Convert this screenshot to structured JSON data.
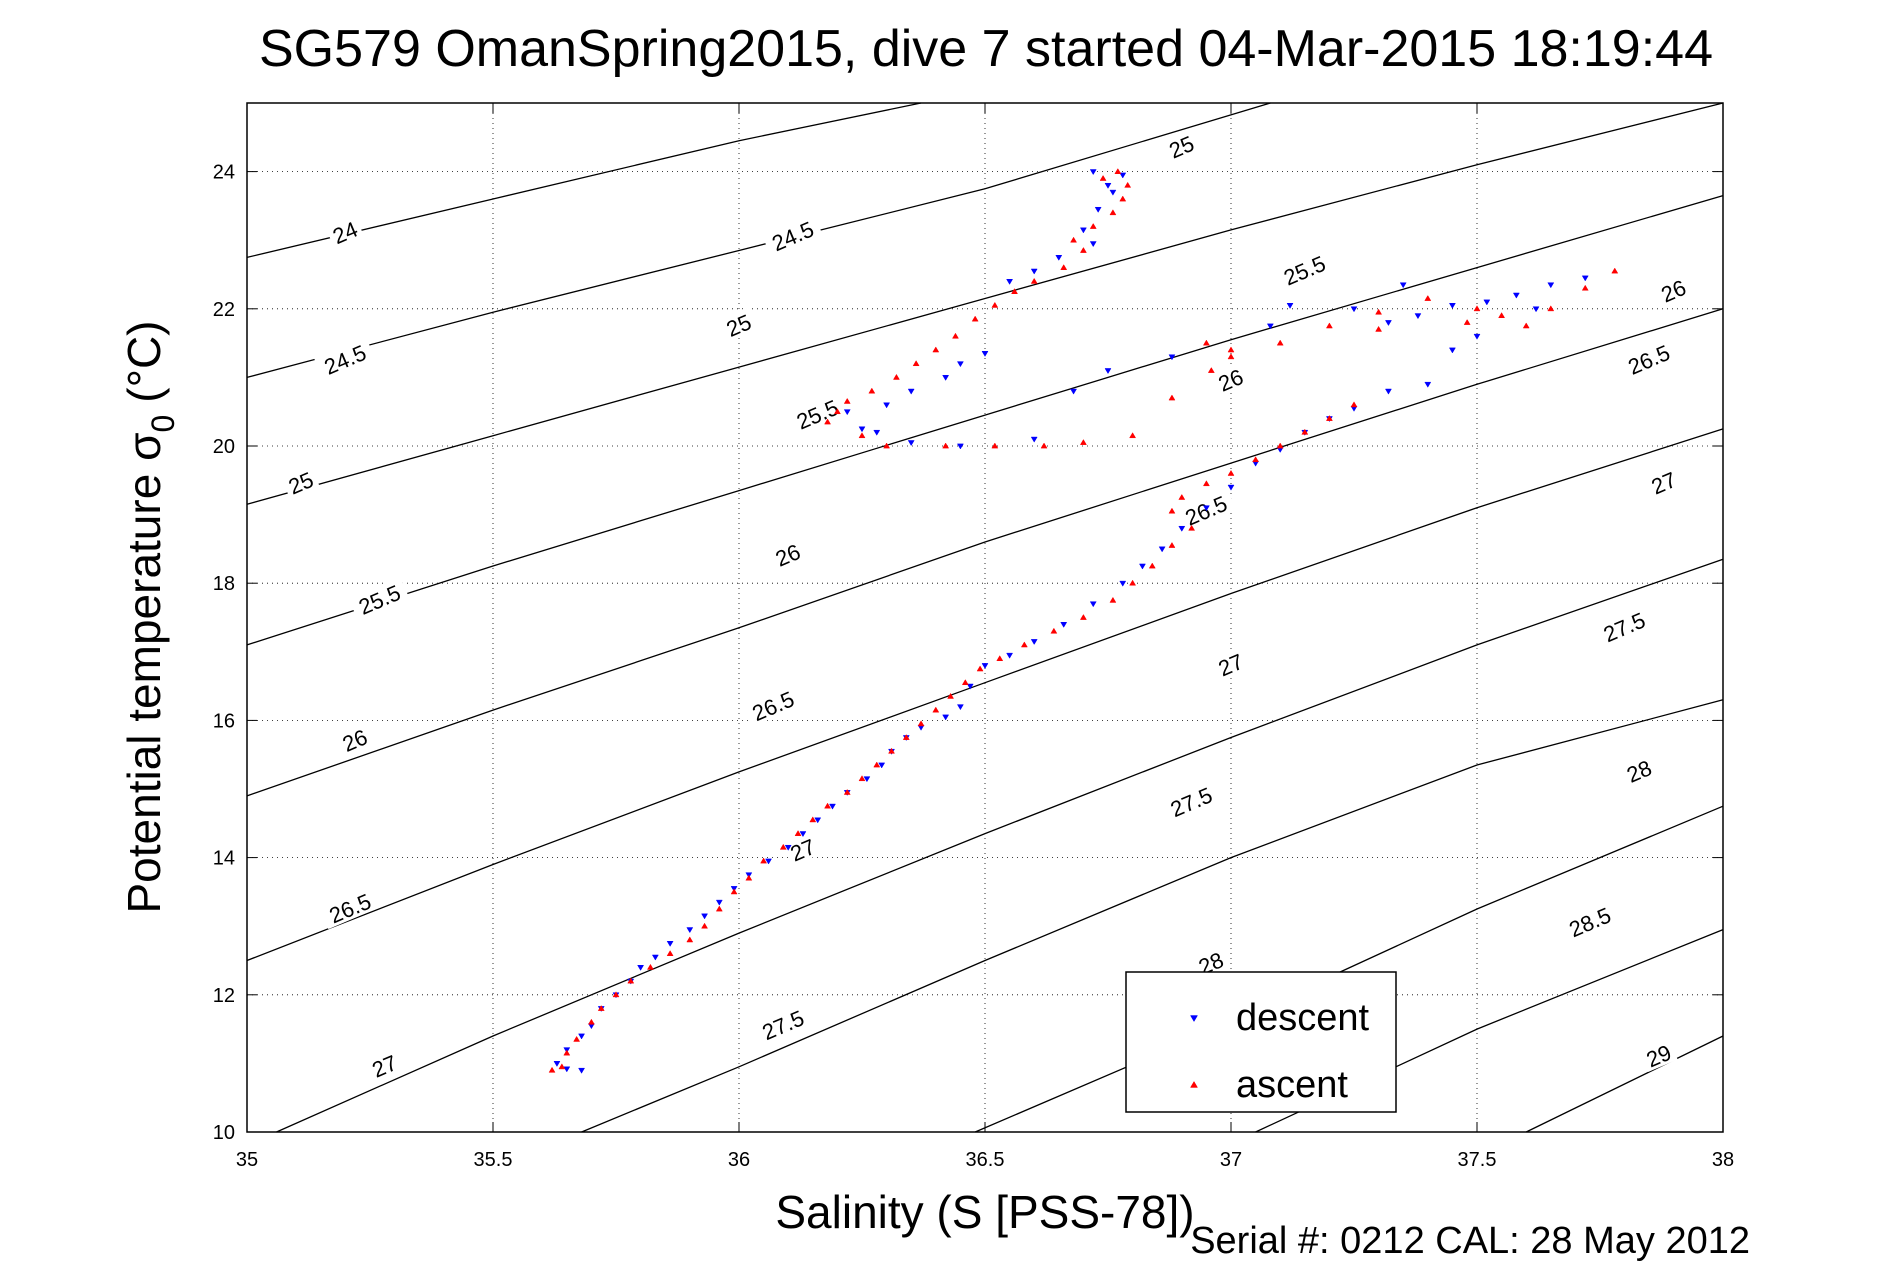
{
  "chart_data": {
    "type": "scatter",
    "title": "SG579 OmanSpring2015, dive 7 started 04-Mar-2015 18:19:44",
    "xlabel": "Salinity (S [PSS-78])",
    "ylabel_main": "Potential temperature σ",
    "ylabel_sub": "0",
    "ylabel_unit": "(°C)",
    "xlim": [
      35,
      38
    ],
    "ylim": [
      10,
      25
    ],
    "x_ticks": [
      35,
      35.5,
      36,
      36.5,
      37,
      37.5,
      38
    ],
    "x_tick_labels": [
      "35",
      "35.5",
      "36",
      "36.5",
      "37",
      "37.5",
      "38"
    ],
    "y_ticks": [
      10,
      12,
      14,
      16,
      18,
      20,
      22,
      24
    ],
    "y_tick_labels": [
      "10",
      "12",
      "14",
      "16",
      "18",
      "20",
      "22",
      "24"
    ],
    "grid": true,
    "legend_position": "bottom-right",
    "contours": [
      {
        "sigma": 24,
        "points": [
          [
            35.0,
            22.75
          ],
          [
            35.5,
            23.6
          ],
          [
            36.0,
            24.45
          ],
          [
            36.37,
            25.0
          ]
        ]
      },
      {
        "sigma": 24.5,
        "points": [
          [
            35.0,
            21.0
          ],
          [
            35.5,
            21.95
          ],
          [
            36.0,
            22.85
          ],
          [
            36.5,
            23.75
          ],
          [
            37.08,
            25.0
          ]
        ]
      },
      {
        "sigma": 25,
        "points": [
          [
            35.0,
            19.15
          ],
          [
            35.5,
            20.15
          ],
          [
            36.0,
            21.15
          ],
          [
            36.5,
            22.15
          ],
          [
            37.0,
            23.15
          ],
          [
            37.5,
            24.1
          ],
          [
            38.0,
            25.0
          ]
        ]
      },
      {
        "sigma": 25.5,
        "points": [
          [
            35.0,
            17.1
          ],
          [
            35.5,
            18.25
          ],
          [
            36.0,
            19.35
          ],
          [
            36.5,
            20.45
          ],
          [
            37.0,
            21.55
          ],
          [
            37.5,
            22.6
          ],
          [
            38.0,
            23.65
          ]
        ]
      },
      {
        "sigma": 26,
        "points": [
          [
            35.0,
            14.9
          ],
          [
            35.5,
            16.15
          ],
          [
            36.0,
            17.35
          ],
          [
            36.5,
            18.6
          ],
          [
            37.0,
            19.75
          ],
          [
            37.5,
            20.9
          ],
          [
            38.0,
            22.0
          ]
        ]
      },
      {
        "sigma": 26.5,
        "points": [
          [
            35.0,
            12.5
          ],
          [
            35.5,
            13.9
          ],
          [
            36.0,
            15.25
          ],
          [
            36.5,
            16.55
          ],
          [
            37.0,
            17.85
          ],
          [
            37.5,
            19.1
          ],
          [
            38.0,
            20.25
          ]
        ]
      },
      {
        "sigma": 27,
        "points": [
          [
            35.06,
            10.0
          ],
          [
            35.5,
            11.4
          ],
          [
            36.0,
            12.9
          ],
          [
            36.5,
            14.35
          ],
          [
            37.0,
            15.75
          ],
          [
            37.5,
            17.1
          ],
          [
            38.0,
            18.35
          ]
        ]
      },
      {
        "sigma": 27.5,
        "points": [
          [
            35.68,
            10.0
          ],
          [
            36.0,
            10.95
          ],
          [
            36.5,
            12.5
          ],
          [
            37.0,
            14.0
          ],
          [
            37.5,
            15.35
          ],
          [
            38.0,
            16.3
          ]
        ]
      },
      {
        "sigma": 28,
        "points": [
          [
            36.48,
            10.0
          ],
          [
            37.0,
            11.6
          ],
          [
            37.5,
            13.25
          ],
          [
            38.0,
            14.75
          ]
        ]
      },
      {
        "sigma": 28.5,
        "points": [
          [
            37.05,
            10.0
          ],
          [
            37.5,
            11.5
          ],
          [
            38.0,
            12.95
          ]
        ]
      },
      {
        "sigma": 29,
        "points": [
          [
            37.6,
            10.0
          ],
          [
            38.0,
            11.4
          ]
        ]
      }
    ],
    "contour_labels": [
      {
        "text": "24",
        "x": 35.2,
        "y": 23.1,
        "angle": -23
      },
      {
        "text": "24.5",
        "x": 36.11,
        "y": 23.05,
        "angle": -23
      },
      {
        "text": "25",
        "x": 36.9,
        "y": 24.35,
        "angle": -23
      },
      {
        "text": "24.5",
        "x": 35.2,
        "y": 21.25,
        "angle": -23
      },
      {
        "text": "25",
        "x": 36.0,
        "y": 21.75,
        "angle": -23
      },
      {
        "text": "25.5",
        "x": 37.15,
        "y": 22.55,
        "angle": -23
      },
      {
        "text": "26",
        "x": 37.9,
        "y": 22.25,
        "angle": -23
      },
      {
        "text": "25",
        "x": 35.11,
        "y": 19.45,
        "angle": -23
      },
      {
        "text": "25.5",
        "x": 36.16,
        "y": 20.45,
        "angle": -23
      },
      {
        "text": "26",
        "x": 37.0,
        "y": 20.95,
        "angle": -23
      },
      {
        "text": "26.5",
        "x": 37.85,
        "y": 21.25,
        "angle": -23
      },
      {
        "text": "25.5",
        "x": 35.27,
        "y": 17.75,
        "angle": -23
      },
      {
        "text": "26",
        "x": 36.1,
        "y": 18.4,
        "angle": -23
      },
      {
        "text": "26.5",
        "x": 36.95,
        "y": 19.05,
        "angle": -23
      },
      {
        "text": "27",
        "x": 37.88,
        "y": 19.45,
        "angle": -23
      },
      {
        "text": "26",
        "x": 35.22,
        "y": 15.7,
        "angle": -23
      },
      {
        "text": "26.5",
        "x": 36.07,
        "y": 16.2,
        "angle": -23
      },
      {
        "text": "27",
        "x": 37.0,
        "y": 16.8,
        "angle": -23
      },
      {
        "text": "27.5",
        "x": 37.8,
        "y": 17.35,
        "angle": -23
      },
      {
        "text": "26.5",
        "x": 35.21,
        "y": 13.25,
        "angle": -23
      },
      {
        "text": "27",
        "x": 36.13,
        "y": 14.1,
        "angle": -23
      },
      {
        "text": "27.5",
        "x": 36.92,
        "y": 14.8,
        "angle": -23
      },
      {
        "text": "28",
        "x": 37.83,
        "y": 15.25,
        "angle": -23
      },
      {
        "text": "27",
        "x": 35.28,
        "y": 10.95,
        "angle": -23
      },
      {
        "text": "27.5",
        "x": 36.09,
        "y": 11.55,
        "angle": -23
      },
      {
        "text": "28",
        "x": 36.96,
        "y": 12.45,
        "angle": -23
      },
      {
        "text": "28.5",
        "x": 37.73,
        "y": 13.05,
        "angle": -23
      },
      {
        "text": "29",
        "x": 37.87,
        "y": 11.1,
        "angle": -23
      }
    ],
    "series": [
      {
        "name": "descent",
        "color": "#0000ff",
        "marker": "triangle-down",
        "points": [
          [
            35.68,
            10.9
          ],
          [
            35.65,
            10.92
          ],
          [
            35.63,
            11.0
          ],
          [
            35.65,
            11.2
          ],
          [
            35.68,
            11.4
          ],
          [
            35.7,
            11.55
          ],
          [
            35.72,
            11.8
          ],
          [
            35.75,
            12.0
          ],
          [
            35.78,
            12.2
          ],
          [
            35.8,
            12.4
          ],
          [
            35.83,
            12.55
          ],
          [
            35.86,
            12.75
          ],
          [
            35.9,
            12.95
          ],
          [
            35.93,
            13.15
          ],
          [
            35.96,
            13.35
          ],
          [
            35.99,
            13.55
          ],
          [
            36.02,
            13.75
          ],
          [
            36.06,
            13.95
          ],
          [
            36.1,
            14.15
          ],
          [
            36.13,
            14.35
          ],
          [
            36.16,
            14.55
          ],
          [
            36.19,
            14.75
          ],
          [
            36.22,
            14.95
          ],
          [
            36.26,
            15.15
          ],
          [
            36.29,
            15.35
          ],
          [
            36.31,
            15.55
          ],
          [
            36.34,
            15.75
          ],
          [
            36.37,
            15.9
          ],
          [
            36.42,
            16.05
          ],
          [
            36.45,
            16.2
          ],
          [
            36.47,
            16.5
          ],
          [
            36.5,
            16.8
          ],
          [
            36.55,
            16.95
          ],
          [
            36.6,
            17.15
          ],
          [
            36.66,
            17.4
          ],
          [
            36.72,
            17.7
          ],
          [
            36.78,
            18.0
          ],
          [
            36.82,
            18.25
          ],
          [
            36.86,
            18.5
          ],
          [
            36.9,
            18.8
          ],
          [
            36.95,
            19.1
          ],
          [
            37.0,
            19.4
          ],
          [
            37.05,
            19.75
          ],
          [
            37.1,
            19.95
          ],
          [
            37.15,
            20.2
          ],
          [
            37.2,
            20.4
          ],
          [
            37.25,
            20.55
          ],
          [
            37.32,
            20.8
          ],
          [
            37.4,
            20.9
          ],
          [
            37.32,
            21.8
          ],
          [
            37.38,
            21.9
          ],
          [
            37.45,
            22.05
          ],
          [
            37.52,
            22.1
          ],
          [
            37.58,
            22.2
          ],
          [
            37.65,
            22.35
          ],
          [
            37.72,
            22.45
          ],
          [
            37.62,
            22.0
          ],
          [
            37.5,
            21.6
          ],
          [
            37.45,
            21.4
          ],
          [
            37.35,
            22.35
          ],
          [
            37.25,
            22.0
          ],
          [
            37.12,
            22.05
          ],
          [
            37.08,
            21.75
          ],
          [
            36.25,
            20.25
          ],
          [
            36.22,
            20.5
          ],
          [
            36.3,
            20.6
          ],
          [
            36.35,
            20.8
          ],
          [
            36.42,
            21.0
          ],
          [
            36.45,
            21.2
          ],
          [
            36.5,
            21.35
          ],
          [
            36.75,
            21.1
          ],
          [
            36.88,
            21.3
          ],
          [
            36.68,
            20.8
          ],
          [
            36.6,
            20.1
          ],
          [
            36.45,
            20.0
          ],
          [
            36.35,
            20.05
          ],
          [
            36.28,
            20.2
          ],
          [
            36.55,
            22.4
          ],
          [
            36.6,
            22.55
          ],
          [
            36.65,
            22.75
          ],
          [
            36.72,
            22.95
          ],
          [
            36.7,
            23.15
          ],
          [
            36.73,
            23.45
          ],
          [
            36.76,
            23.7
          ],
          [
            36.78,
            23.95
          ],
          [
            36.72,
            24.0
          ],
          [
            36.75,
            23.8
          ]
        ]
      },
      {
        "name": "ascent",
        "color": "#ff0000",
        "marker": "triangle-up",
        "points": [
          [
            35.62,
            10.9
          ],
          [
            35.64,
            10.95
          ],
          [
            35.65,
            11.15
          ],
          [
            35.67,
            11.35
          ],
          [
            35.7,
            11.6
          ],
          [
            35.72,
            11.8
          ],
          [
            35.75,
            12.0
          ],
          [
            35.78,
            12.2
          ],
          [
            35.82,
            12.4
          ],
          [
            35.86,
            12.6
          ],
          [
            35.9,
            12.8
          ],
          [
            35.93,
            13.0
          ],
          [
            35.96,
            13.25
          ],
          [
            35.99,
            13.5
          ],
          [
            36.02,
            13.7
          ],
          [
            36.05,
            13.95
          ],
          [
            36.09,
            14.15
          ],
          [
            36.12,
            14.35
          ],
          [
            36.15,
            14.55
          ],
          [
            36.18,
            14.75
          ],
          [
            36.22,
            14.95
          ],
          [
            36.25,
            15.15
          ],
          [
            36.28,
            15.35
          ],
          [
            36.31,
            15.55
          ],
          [
            36.34,
            15.75
          ],
          [
            36.37,
            15.95
          ],
          [
            36.4,
            16.15
          ],
          [
            36.43,
            16.35
          ],
          [
            36.46,
            16.55
          ],
          [
            36.49,
            16.75
          ],
          [
            36.53,
            16.9
          ],
          [
            36.58,
            17.1
          ],
          [
            36.64,
            17.3
          ],
          [
            36.7,
            17.5
          ],
          [
            36.76,
            17.75
          ],
          [
            36.8,
            18.0
          ],
          [
            36.84,
            18.25
          ],
          [
            36.88,
            18.55
          ],
          [
            36.92,
            18.8
          ],
          [
            36.88,
            19.05
          ],
          [
            36.9,
            19.25
          ],
          [
            36.95,
            19.45
          ],
          [
            37.0,
            19.6
          ],
          [
            37.05,
            19.8
          ],
          [
            37.1,
            20.0
          ],
          [
            37.15,
            20.2
          ],
          [
            37.2,
            20.4
          ],
          [
            37.25,
            20.6
          ],
          [
            37.0,
            21.4
          ],
          [
            37.1,
            21.5
          ],
          [
            37.2,
            21.75
          ],
          [
            37.3,
            21.95
          ],
          [
            37.4,
            22.15
          ],
          [
            37.5,
            22.0
          ],
          [
            37.55,
            21.9
          ],
          [
            37.65,
            22.0
          ],
          [
            37.72,
            22.3
          ],
          [
            37.78,
            22.55
          ],
          [
            37.6,
            21.75
          ],
          [
            37.3,
            21.7
          ],
          [
            37.48,
            21.8
          ],
          [
            36.2,
            20.5
          ],
          [
            36.18,
            20.35
          ],
          [
            36.25,
            20.15
          ],
          [
            36.3,
            20.0
          ],
          [
            36.42,
            20.0
          ],
          [
            36.52,
            20.0
          ],
          [
            36.62,
            20.0
          ],
          [
            36.7,
            20.05
          ],
          [
            36.8,
            20.15
          ],
          [
            36.88,
            20.7
          ],
          [
            36.96,
            21.1
          ],
          [
            37.0,
            21.3
          ],
          [
            36.95,
            21.5
          ],
          [
            36.22,
            20.65
          ],
          [
            36.27,
            20.8
          ],
          [
            36.32,
            21.0
          ],
          [
            36.36,
            21.2
          ],
          [
            36.4,
            21.4
          ],
          [
            36.44,
            21.6
          ],
          [
            36.48,
            21.85
          ],
          [
            36.52,
            22.05
          ],
          [
            36.56,
            22.25
          ],
          [
            36.6,
            22.4
          ],
          [
            36.66,
            22.6
          ],
          [
            36.7,
            22.85
          ],
          [
            36.68,
            23.0
          ],
          [
            36.72,
            23.2
          ],
          [
            36.76,
            23.4
          ],
          [
            36.78,
            23.6
          ],
          [
            36.79,
            23.8
          ],
          [
            36.77,
            24.0
          ],
          [
            36.74,
            23.9
          ]
        ]
      }
    ]
  },
  "footer": {
    "serial_text": "Serial #: 0212  CAL: 28 May 2012"
  }
}
